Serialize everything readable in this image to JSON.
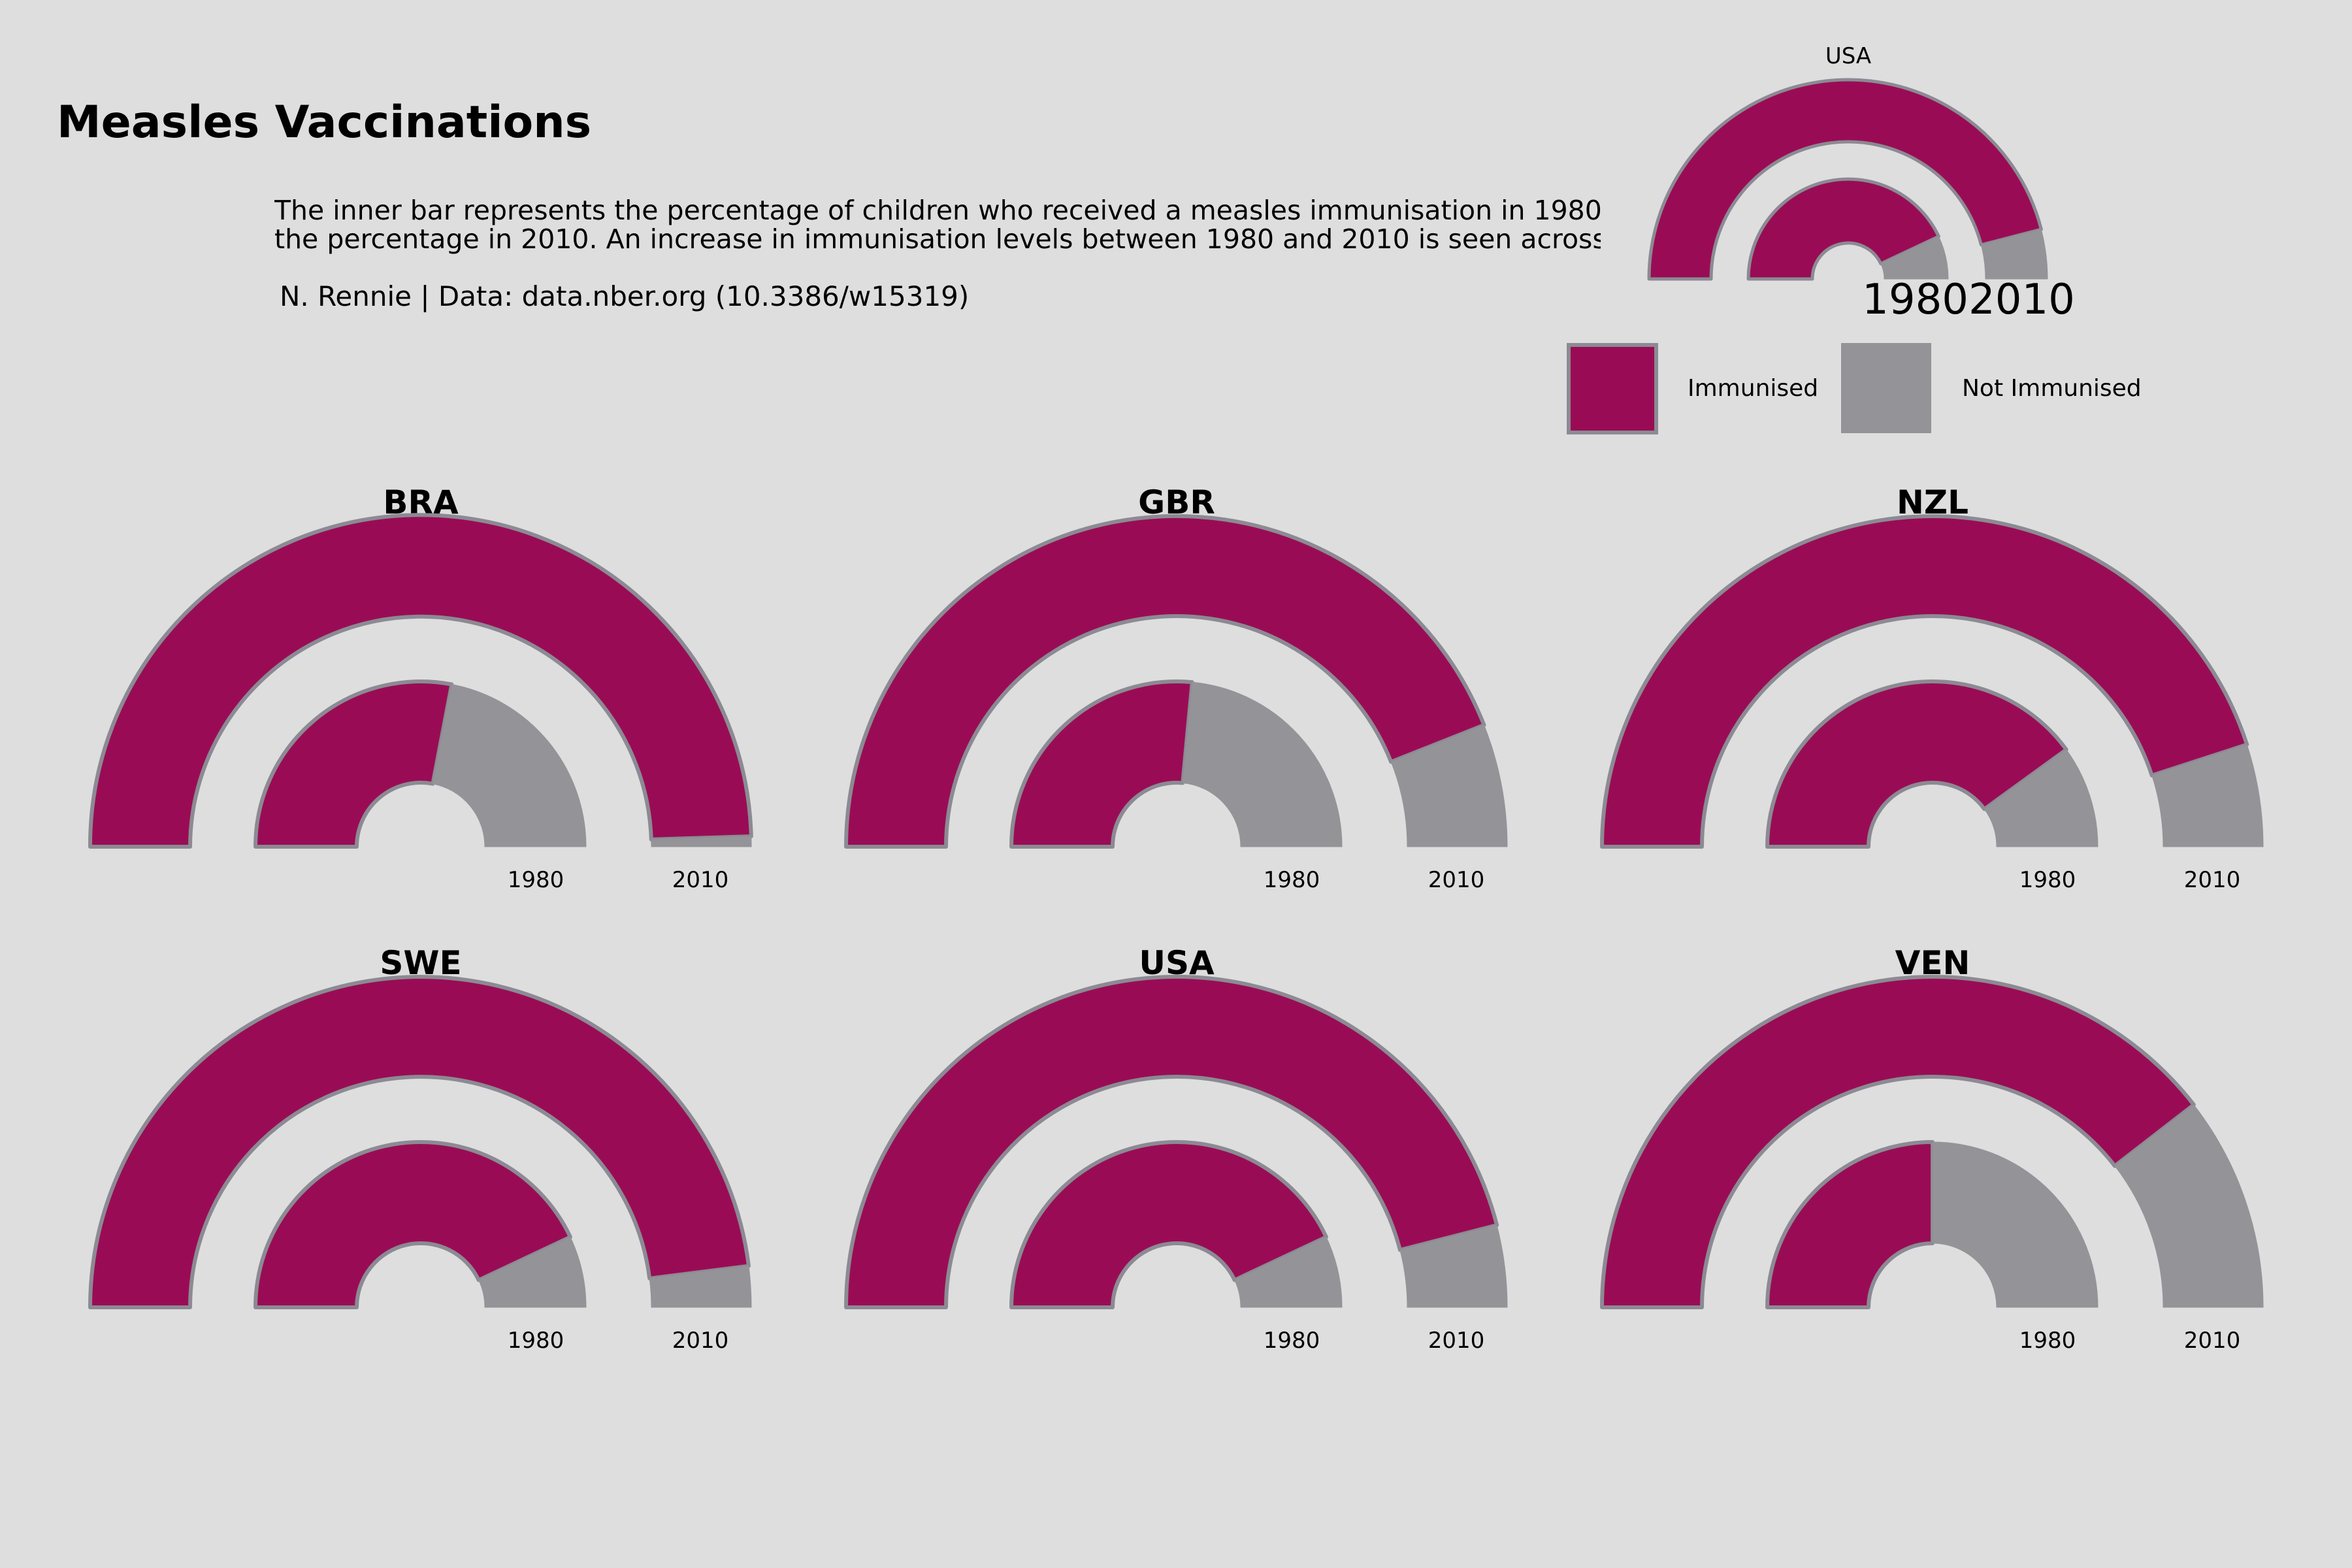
{
  "title": "Measles Vaccinations",
  "subtitle_lines": [
    "The inner bar represents the percentage of children who received a measles immunisation in 1980",
    "the percentage in 2010. An increase in immunisation levels between 1980 and 2010 is seen across"
  ],
  "caption": "N. Rennie | Data: data.nber.org (10.3386/w15319)",
  "colors": {
    "immunised": "#990c55",
    "not_immunised": "#949397",
    "stroke": "#8c8a93",
    "background": "#dedede"
  },
  "key": {
    "country": "USA",
    "year_labels": [
      "1980",
      "2010"
    ],
    "year_labels_combined": "19802010"
  },
  "legend": {
    "immunised_label": "Immunised",
    "not_immunised_label": "Not Immunised"
  },
  "chart_data": {
    "type": "semicircular-ring-gauge",
    "unit": "percent immunised",
    "years": [
      "1980",
      "2010"
    ],
    "panels": [
      {
        "country": "BRA",
        "values": {
          "1980": 56,
          "2010": 99
        }
      },
      {
        "country": "GBR",
        "values": {
          "1980": 53,
          "2010": 88
        }
      },
      {
        "country": "NZL",
        "values": {
          "1980": 80,
          "2010": 90
        }
      },
      {
        "country": "SWE",
        "values": {
          "1980": 86,
          "2010": 96
        }
      },
      {
        "country": "USA",
        "values": {
          "1980": 86,
          "2010": 92
        }
      },
      {
        "country": "VEN",
        "values": {
          "1980": 50,
          "2010": 79
        }
      }
    ]
  }
}
